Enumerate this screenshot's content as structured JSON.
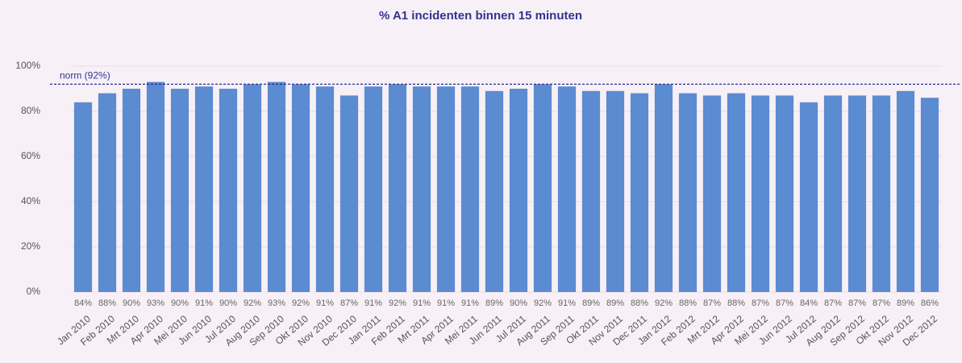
{
  "chart_data": {
    "type": "bar",
    "title": "% A1 incidenten binnen 15 minuten",
    "categories": [
      "Jan 2010",
      "Feb 2010",
      "Mrt 2010",
      "Apr 2010",
      "Mei 2010",
      "Jun 2010",
      "Jul 2010",
      "Aug 2010",
      "Sep 2010",
      "Okt 2010",
      "Nov 2010",
      "Dec 2010",
      "Jan 2011",
      "Feb 2011",
      "Mrt 2011",
      "Apr 2011",
      "Mei 2011",
      "Jun 2011",
      "Jul 2011",
      "Aug 2011",
      "Sep 2011",
      "Okt 2011",
      "Nov 2011",
      "Dec 2011",
      "Jan 2012",
      "Feb 2012",
      "Mrt 2012",
      "Apr 2012",
      "Mei 2012",
      "Jun 2012",
      "Jul 2012",
      "Aug 2012",
      "Sep 2012",
      "Okt 2012",
      "Nov 2012",
      "Dec 2012"
    ],
    "values": [
      84,
      88,
      90,
      93,
      90,
      91,
      90,
      92,
      93,
      92,
      91,
      87,
      91,
      92,
      91,
      91,
      91,
      89,
      90,
      92,
      91,
      89,
      89,
      88,
      92,
      88,
      87,
      88,
      87,
      87,
      84,
      87,
      87,
      87,
      89,
      86
    ],
    "value_labels": [
      "84%",
      "88%",
      "90%",
      "93%",
      "90%",
      "91%",
      "90%",
      "92%",
      "93%",
      "92%",
      "91%",
      "87%",
      "91%",
      "92%",
      "91%",
      "91%",
      "91%",
      "89%",
      "90%",
      "92%",
      "91%",
      "89%",
      "89%",
      "88%",
      "92%",
      "88%",
      "87%",
      "88%",
      "87%",
      "87%",
      "84%",
      "87%",
      "87%",
      "87%",
      "89%",
      "86%"
    ],
    "color": "#5b8bd1",
    "ylim": [
      0,
      100
    ],
    "yticks": [
      {
        "value": 0,
        "label": "0%"
      },
      {
        "value": 20,
        "label": "20%"
      },
      {
        "value": 40,
        "label": "40%"
      },
      {
        "value": 60,
        "label": "60%"
      },
      {
        "value": 80,
        "label": "80%"
      },
      {
        "value": 100,
        "label": "100%"
      }
    ],
    "norm": {
      "label": "norm (92%)",
      "value": 92,
      "color": "#1f2f8f"
    }
  }
}
